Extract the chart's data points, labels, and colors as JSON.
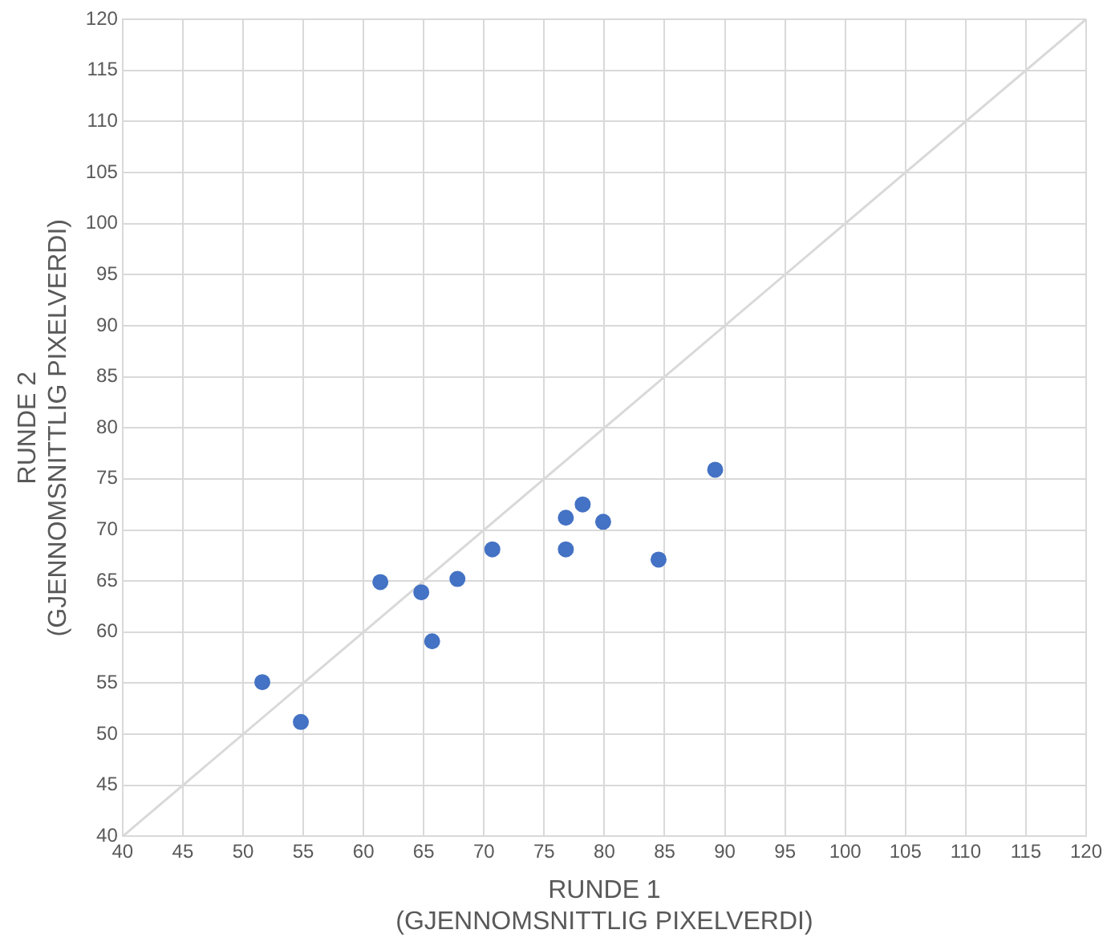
{
  "chart_data": {
    "type": "scatter",
    "xlabel": "RUNDE 1\n(GJENNOMSNITTLIG PIXELVERDI)",
    "ylabel": "RUNDE 2\n(GJENNOMSNITTLIG PIXELVERDI)",
    "xlim": [
      40,
      120
    ],
    "ylim": [
      40,
      120
    ],
    "xticks": [
      40,
      45,
      50,
      55,
      60,
      65,
      70,
      75,
      80,
      85,
      90,
      95,
      100,
      105,
      110,
      115,
      120
    ],
    "yticks": [
      40,
      45,
      50,
      55,
      60,
      65,
      70,
      75,
      80,
      85,
      90,
      95,
      100,
      105,
      110,
      115,
      120
    ],
    "grid": true,
    "marker": "circle",
    "series": [
      {
        "type": "line",
        "color": "#d9d9d9",
        "x": [
          40,
          120
        ],
        "values": [
          40,
          120
        ],
        "marker": "none"
      },
      {
        "type": "scatter",
        "color": "#4472c4",
        "x": [
          51.6,
          54.8,
          61.4,
          64.8,
          65.7,
          67.8,
          70.7,
          76.8,
          76.8,
          78.2,
          79.9,
          84.5,
          89.2
        ],
        "values": [
          55.1,
          51.2,
          64.9,
          63.9,
          59.1,
          65.2,
          68.1,
          71.2,
          68.1,
          72.5,
          70.8,
          67.1,
          75.9
        ]
      }
    ]
  }
}
